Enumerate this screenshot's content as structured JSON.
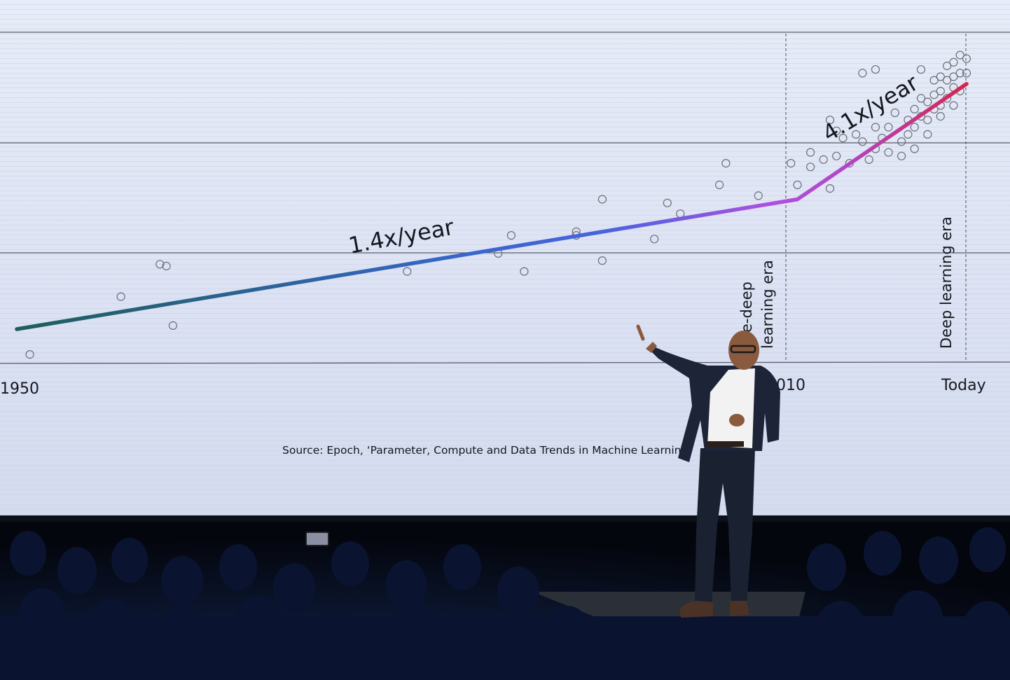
{
  "photo": {
    "description_free": true,
    "colors": {
      "screen_bg": "#dde4f6",
      "screen_grid": "#5a5e6a",
      "line_start": "#1f5e5a",
      "line_mid": "#3d6fd8",
      "line_purple": "#b04fe0",
      "line_end": "#d4264c",
      "marker": "#6b6f78",
      "stage_floor": "#1a1d24",
      "audience": "#0a1024"
    }
  },
  "chart_data": {
    "type": "scatter",
    "title": "",
    "xlabel": "",
    "ylabel": "",
    "x_ticks": [
      "1950",
      "2010",
      "Today"
    ],
    "x_tick_values": [
      1950,
      2010,
      2023
    ],
    "xlim": [
      1950,
      2023
    ],
    "y_scale": "log",
    "gridlines": 4,
    "eras": [
      {
        "label": "Pre-deep learning era",
        "visible_text_lines": [
          "e-deep",
          "learning era"
        ],
        "start": 1950,
        "end": 2010
      },
      {
        "label": "Deep learning era",
        "visible_text_lines": [
          "Deep learning era"
        ],
        "start": 2010,
        "end": 2023
      }
    ],
    "trend_annotations": [
      {
        "text": "1.4x/year",
        "segment": "pre-deep"
      },
      {
        "text": "4.1x/year",
        "segment": "deep"
      }
    ],
    "trend_line": [
      {
        "x": 1950,
        "y": 0.0
      },
      {
        "x": 2010,
        "y": 3.6
      },
      {
        "x": 2023,
        "y": 6.8
      }
    ],
    "series": [
      {
        "points_pre": [
          [
            1951,
            -0.7
          ],
          [
            1958,
            0.9
          ],
          [
            1961,
            1.8
          ],
          [
            1961.5,
            1.75
          ],
          [
            1962,
            0.1
          ],
          [
            1980,
            1.6
          ],
          [
            1987,
            2.1
          ],
          [
            1988,
            2.6
          ],
          [
            1989,
            1.6
          ],
          [
            1993,
            2.6
          ],
          [
            1993,
            2.7
          ],
          [
            1995,
            1.9
          ],
          [
            1995,
            3.6
          ],
          [
            1999,
            2.5
          ],
          [
            2000,
            3.5
          ],
          [
            2001,
            3.2
          ],
          [
            2004,
            4.0
          ],
          [
            2004.5,
            4.6
          ],
          [
            2007,
            3.7
          ]
        ],
        "points_deep": [
          [
            2009.5,
            4.6
          ],
          [
            2010,
            4.0
          ],
          [
            2011,
            4.9
          ],
          [
            2011,
            4.5
          ],
          [
            2012,
            4.7
          ],
          [
            2012.5,
            3.9
          ],
          [
            2013,
            4.8
          ],
          [
            2013.5,
            5.3
          ],
          [
            2014,
            4.6
          ],
          [
            2014.5,
            5.4
          ],
          [
            2015,
            5.2
          ],
          [
            2015.5,
            4.7
          ],
          [
            2016,
            5.6
          ],
          [
            2016,
            5.0
          ],
          [
            2016.5,
            5.3
          ],
          [
            2017,
            5.6
          ],
          [
            2017,
            4.9
          ],
          [
            2017.5,
            6.0
          ],
          [
            2018,
            5.2
          ],
          [
            2018,
            4.8
          ],
          [
            2018.5,
            5.8
          ],
          [
            2018.5,
            5.4
          ],
          [
            2019,
            6.1
          ],
          [
            2019,
            5.6
          ],
          [
            2019,
            5.0
          ],
          [
            2019.5,
            7.2
          ],
          [
            2019.5,
            6.4
          ],
          [
            2019.5,
            5.9
          ],
          [
            2020,
            6.3
          ],
          [
            2020,
            5.8
          ],
          [
            2020,
            5.4
          ],
          [
            2020.5,
            6.9
          ],
          [
            2020.5,
            6.5
          ],
          [
            2020.5,
            6.1
          ],
          [
            2021,
            7.0
          ],
          [
            2021,
            6.6
          ],
          [
            2021,
            6.2
          ],
          [
            2021,
            5.9
          ],
          [
            2021.5,
            7.3
          ],
          [
            2021.5,
            6.9
          ],
          [
            2021.5,
            6.4
          ],
          [
            2022,
            7.4
          ],
          [
            2022,
            7.0
          ],
          [
            2022,
            6.7
          ],
          [
            2022,
            6.2
          ],
          [
            2022.5,
            7.6
          ],
          [
            2022.5,
            7.1
          ],
          [
            2022.5,
            6.6
          ],
          [
            2023,
            7.5
          ],
          [
            2023,
            7.1
          ],
          [
            2015,
            7.1
          ],
          [
            2016,
            7.2
          ],
          [
            2012.5,
            5.8
          ],
          [
            2013,
            5.5
          ]
        ]
      }
    ]
  },
  "source_note": "Source: Epoch, ‘Parameter, Compute and Data Trends in Machine Learnin"
}
